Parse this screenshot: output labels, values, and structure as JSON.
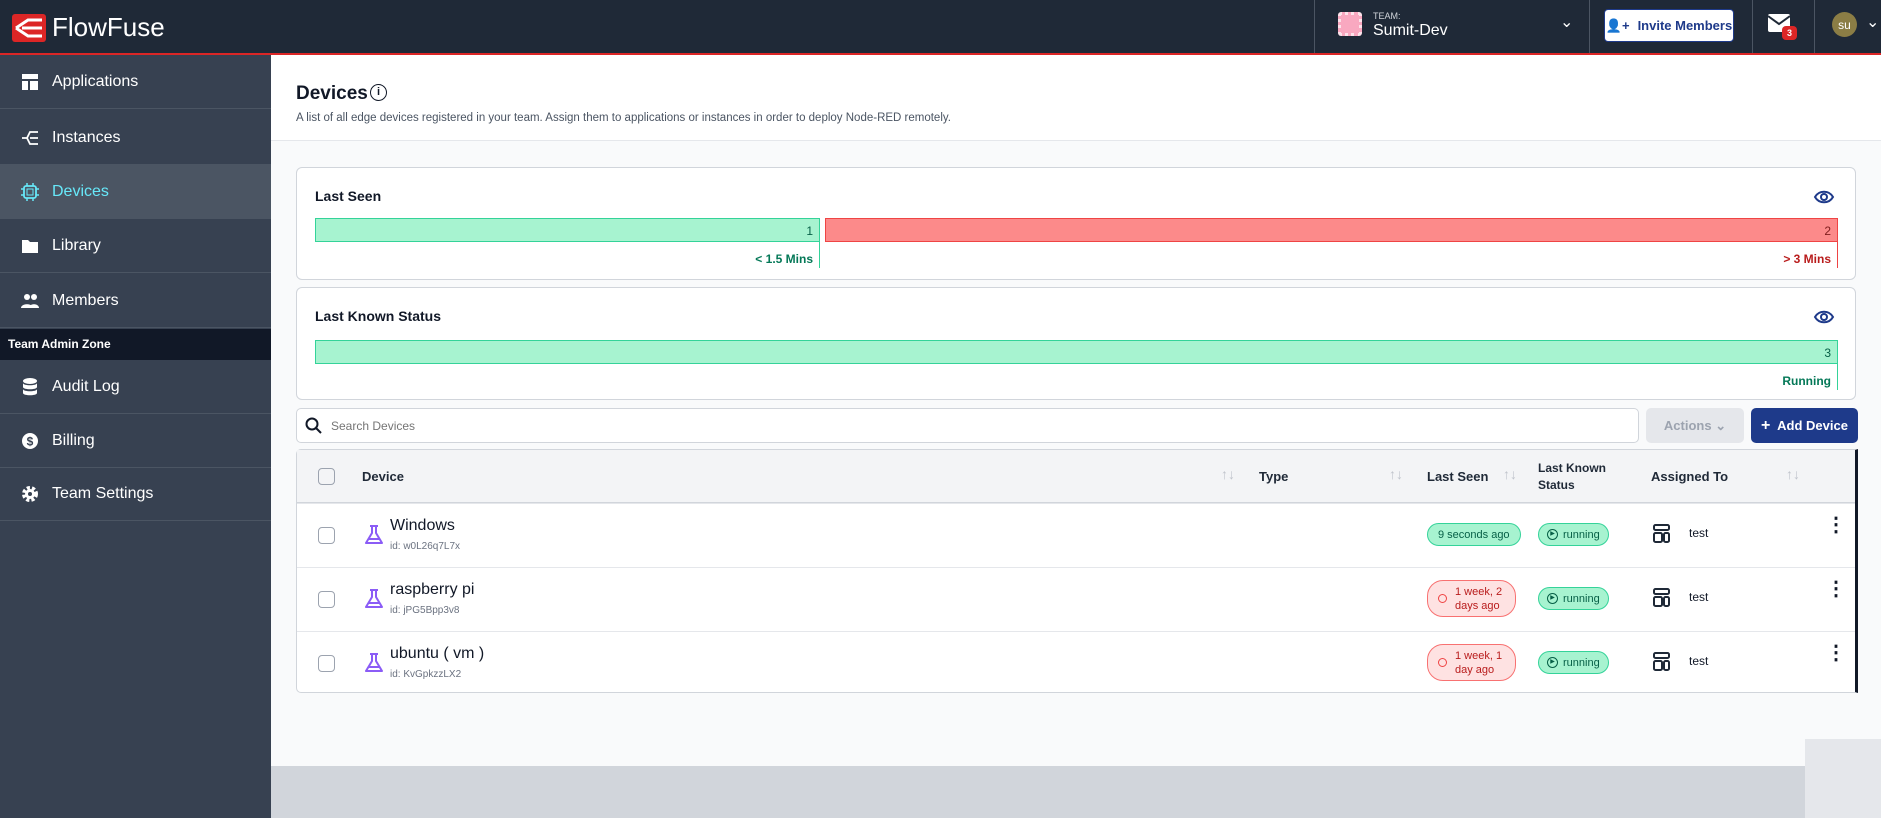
{
  "header": {
    "brand": "FlowFuse",
    "team_label": "TEAM:",
    "team_name": "Sumit-Dev",
    "invite_label": "Invite Members",
    "notifications_count": "3",
    "avatar_initials": "su"
  },
  "sidebar": {
    "items": [
      {
        "label": "Applications"
      },
      {
        "label": "Instances"
      },
      {
        "label": "Devices",
        "active": true
      },
      {
        "label": "Library"
      },
      {
        "label": "Members"
      }
    ],
    "admin_zone_label": "Team Admin Zone",
    "admin_items": [
      {
        "label": "Audit Log"
      },
      {
        "label": "Billing"
      },
      {
        "label": "Team Settings"
      }
    ]
  },
  "page": {
    "title": "Devices",
    "description": "A list of all edge devices registered in your team. Assign them to applications or instances in order to deploy Node-RED remotely."
  },
  "last_seen": {
    "title": "Last Seen",
    "segments": [
      {
        "count": "1",
        "label": "< 1.5 Mins",
        "color": "#a7f3d0"
      },
      {
        "count": "2",
        "label": "> 3 Mins",
        "color": "#fca5a5"
      }
    ]
  },
  "last_status": {
    "title": "Last Known Status",
    "segments": [
      {
        "count": "3",
        "label": "Running",
        "color": "#a7f3d0"
      }
    ]
  },
  "toolbar": {
    "search_placeholder": "Search Devices",
    "actions_label": "Actions",
    "add_label": "Add Device"
  },
  "table": {
    "headers": {
      "device": "Device",
      "type": "Type",
      "last_seen": "Last Seen",
      "status_1": "Last Known",
      "status_2": "Status",
      "assigned": "Assigned To"
    },
    "rows": [
      {
        "name": "Windows",
        "id": "id: w0L26q7L7x",
        "last_seen": "9 seconds ago",
        "last_seen_state": "ok",
        "status": "running",
        "assigned": "test"
      },
      {
        "name": "raspberry pi",
        "id": "id: jPG5Bpp3v8",
        "last_seen": "1 week, 2 days ago",
        "last_seen_state": "stale",
        "status": "running",
        "assigned": "test"
      },
      {
        "name": "ubuntu ( vm )",
        "id": "id: KvGpkzzLX2",
        "last_seen": "1 week, 1 day ago",
        "last_seen_state": "stale",
        "status": "running",
        "assigned": "test"
      }
    ]
  }
}
